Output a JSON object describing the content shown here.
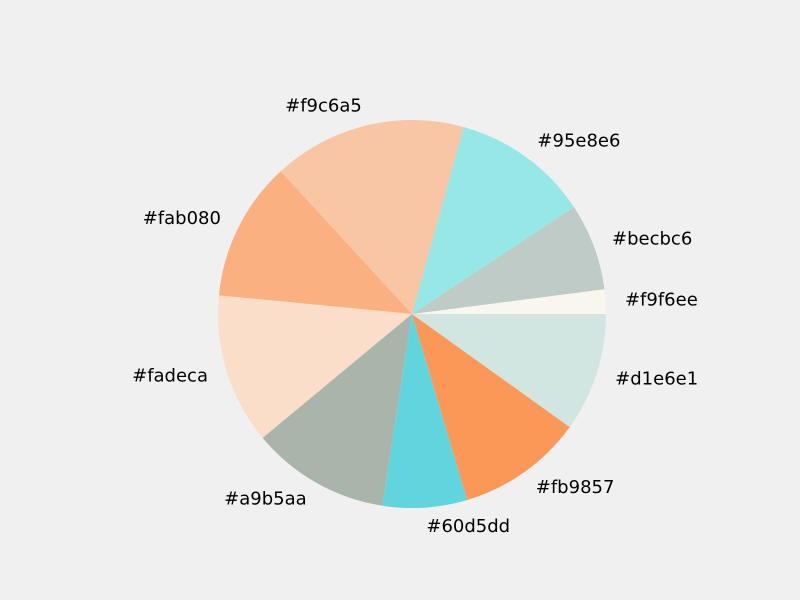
{
  "chart_data": {
    "type": "pie",
    "title": "",
    "slices": [
      {
        "label": "#f9f6ee",
        "value": 2.0,
        "color": "#f9f6ee"
      },
      {
        "label": "#becbc6",
        "value": 7.1,
        "color": "#becbc6"
      },
      {
        "label": "#95e8e6",
        "value": 11.2,
        "color": "#95e8e6"
      },
      {
        "label": "#f9c6a5",
        "value": 15.8,
        "color": "#f9c6a5"
      },
      {
        "label": "#fab080",
        "value": 11.4,
        "color": "#fab080"
      },
      {
        "label": "#fadeca",
        "value": 12.3,
        "color": "#fadeca"
      },
      {
        "label": "#a9b5aa",
        "value": 11.3,
        "color": "#a9b5aa"
      },
      {
        "label": "#60d5dd",
        "value": 6.9,
        "color": "#60d5dd"
      },
      {
        "label": "#fb9857",
        "value": 10.3,
        "color": "#fb9857"
      },
      {
        "label": "#d1e6e1",
        "value": 9.7,
        "color": "#d1e6e1"
      }
    ],
    "start_angle": 0,
    "direction": "counterclockwise",
    "background_color": "#f0f0f0"
  }
}
